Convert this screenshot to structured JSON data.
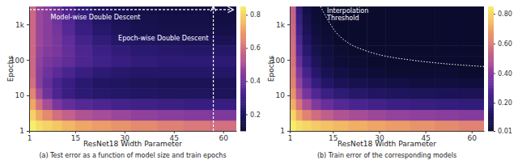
{
  "chart_data": [
    {
      "type": "heatmap",
      "subtitle": "(a) Test error as a function of model size and train epochs",
      "x_label": "ResNet18 Width Parameter",
      "y_label": "Epochs",
      "log": "y",
      "xlim": [
        1,
        64
      ],
      "xticks": [
        1,
        15,
        30,
        45,
        60
      ],
      "ylim": [
        1,
        3200
      ],
      "yticks": [
        1,
        10,
        100,
        {
          "value": 1000,
          "label": "1k"
        }
      ],
      "x_edges": [
        1,
        3,
        5,
        8,
        11,
        15,
        20,
        26,
        32,
        40,
        48,
        56,
        64
      ],
      "y_edges": [
        1,
        2,
        4,
        8,
        16,
        32,
        64,
        128,
        256,
        512,
        1024,
        2048,
        3200
      ],
      "values": [
        [
          0.85,
          0.82,
          0.8,
          0.78,
          0.75,
          0.72,
          0.7,
          0.68,
          0.66,
          0.64,
          0.62,
          0.6
        ],
        [
          0.8,
          0.72,
          0.66,
          0.6,
          0.56,
          0.52,
          0.5,
          0.48,
          0.46,
          0.45,
          0.44,
          0.43
        ],
        [
          0.72,
          0.6,
          0.5,
          0.42,
          0.38,
          0.35,
          0.33,
          0.31,
          0.3,
          0.29,
          0.28,
          0.28
        ],
        [
          0.65,
          0.5,
          0.4,
          0.33,
          0.28,
          0.25,
          0.23,
          0.22,
          0.21,
          0.2,
          0.2,
          0.19
        ],
        [
          0.6,
          0.45,
          0.38,
          0.32,
          0.28,
          0.24,
          0.21,
          0.2,
          0.19,
          0.18,
          0.18,
          0.18
        ],
        [
          0.58,
          0.45,
          0.4,
          0.36,
          0.32,
          0.28,
          0.25,
          0.23,
          0.22,
          0.22,
          0.22,
          0.22
        ],
        [
          0.58,
          0.46,
          0.42,
          0.4,
          0.37,
          0.33,
          0.3,
          0.28,
          0.26,
          0.25,
          0.25,
          0.25
        ],
        [
          0.58,
          0.47,
          0.44,
          0.42,
          0.38,
          0.33,
          0.29,
          0.26,
          0.24,
          0.23,
          0.22,
          0.22
        ],
        [
          0.58,
          0.48,
          0.45,
          0.42,
          0.37,
          0.31,
          0.26,
          0.22,
          0.2,
          0.19,
          0.18,
          0.18
        ],
        [
          0.58,
          0.48,
          0.45,
          0.41,
          0.35,
          0.28,
          0.23,
          0.19,
          0.17,
          0.16,
          0.16,
          0.15
        ],
        [
          0.58,
          0.48,
          0.45,
          0.4,
          0.34,
          0.27,
          0.21,
          0.18,
          0.16,
          0.15,
          0.15,
          0.14
        ],
        [
          0.58,
          0.48,
          0.45,
          0.4,
          0.33,
          0.26,
          0.2,
          0.17,
          0.15,
          0.14,
          0.14,
          0.14
        ]
      ],
      "colorbar_lim": [
        0.1,
        0.85
      ],
      "colorbar_ticks": [
        0.2,
        0.4,
        0.6,
        0.8
      ],
      "annotations": [
        {
          "text": "Model-wise Double Descent",
          "x": [
            1,
            63
          ],
          "y": [
            2600,
            2600
          ],
          "line_style": "dashed",
          "marker": "arrow"
        },
        {
          "text": "Epoch-wise Double Descent",
          "x": [
            57,
            57
          ],
          "y": [
            1,
            3200
          ],
          "line_style": "dashed",
          "marker": "arrow"
        }
      ]
    },
    {
      "type": "heatmap",
      "subtitle": "(b) Train error of the corresponding models",
      "x_label": "ResNet18 Width Parameter",
      "y_label": "Epochs",
      "log": "y",
      "xlim": [
        1,
        64
      ],
      "xticks": [
        1,
        15,
        30,
        45,
        60
      ],
      "ylim": [
        1,
        3200
      ],
      "yticks": [
        1,
        10,
        100,
        {
          "value": 1000,
          "label": "1k"
        }
      ],
      "x_edges": [
        1,
        3,
        5,
        8,
        11,
        15,
        20,
        26,
        32,
        40,
        48,
        56,
        64
      ],
      "y_edges": [
        1,
        2,
        4,
        8,
        16,
        32,
        64,
        128,
        256,
        512,
        1024,
        2048,
        3200
      ],
      "values": [
        [
          0.85,
          0.82,
          0.8,
          0.78,
          0.76,
          0.74,
          0.72,
          0.7,
          0.68,
          0.66,
          0.64,
          0.62
        ],
        [
          0.8,
          0.7,
          0.62,
          0.56,
          0.52,
          0.48,
          0.46,
          0.44,
          0.42,
          0.41,
          0.4,
          0.39
        ],
        [
          0.72,
          0.58,
          0.47,
          0.38,
          0.33,
          0.29,
          0.26,
          0.24,
          0.22,
          0.21,
          0.2,
          0.19
        ],
        [
          0.66,
          0.48,
          0.36,
          0.28,
          0.22,
          0.18,
          0.15,
          0.13,
          0.12,
          0.11,
          0.1,
          0.1
        ],
        [
          0.62,
          0.42,
          0.3,
          0.2,
          0.14,
          0.1,
          0.08,
          0.07,
          0.06,
          0.05,
          0.05,
          0.04
        ],
        [
          0.6,
          0.38,
          0.25,
          0.15,
          0.09,
          0.06,
          0.04,
          0.03,
          0.02,
          0.02,
          0.02,
          0.01
        ],
        [
          0.58,
          0.34,
          0.2,
          0.11,
          0.06,
          0.03,
          0.02,
          0.01,
          0.01,
          0.01,
          0.01,
          0.01
        ],
        [
          0.57,
          0.3,
          0.16,
          0.08,
          0.04,
          0.02,
          0.01,
          0.01,
          0.01,
          0.01,
          0.01,
          0.01
        ],
        [
          0.56,
          0.27,
          0.13,
          0.06,
          0.03,
          0.01,
          0.01,
          0.01,
          0.01,
          0.01,
          0.01,
          0.01
        ],
        [
          0.55,
          0.24,
          0.1,
          0.04,
          0.02,
          0.01,
          0.01,
          0.01,
          0.01,
          0.01,
          0.01,
          0.01
        ],
        [
          0.54,
          0.22,
          0.08,
          0.03,
          0.01,
          0.01,
          0.01,
          0.01,
          0.01,
          0.01,
          0.01,
          0.01
        ],
        [
          0.53,
          0.2,
          0.06,
          0.02,
          0.01,
          0.01,
          0.01,
          0.01,
          0.01,
          0.01,
          0.01,
          0.01
        ]
      ],
      "colorbar_lim": [
        0.01,
        0.85
      ],
      "colorbar_ticks": [
        {
          "value": 0.01,
          "label": "0.01"
        },
        {
          "value": 0.2,
          "label": "0.20"
        },
        {
          "value": 0.4,
          "label": "0.40"
        },
        {
          "value": 0.6,
          "label": "0.60"
        },
        {
          "value": 0.8,
          "label": "0.80"
        }
      ],
      "annotations": [
        {
          "text": "Interpolation Threshold",
          "x": [
            11,
            13,
            16,
            20,
            25,
            30,
            40,
            50,
            64
          ],
          "y": [
            3200,
            1500,
            600,
            300,
            190,
            140,
            100,
            80,
            65
          ],
          "line_style": "dotted"
        }
      ]
    }
  ]
}
